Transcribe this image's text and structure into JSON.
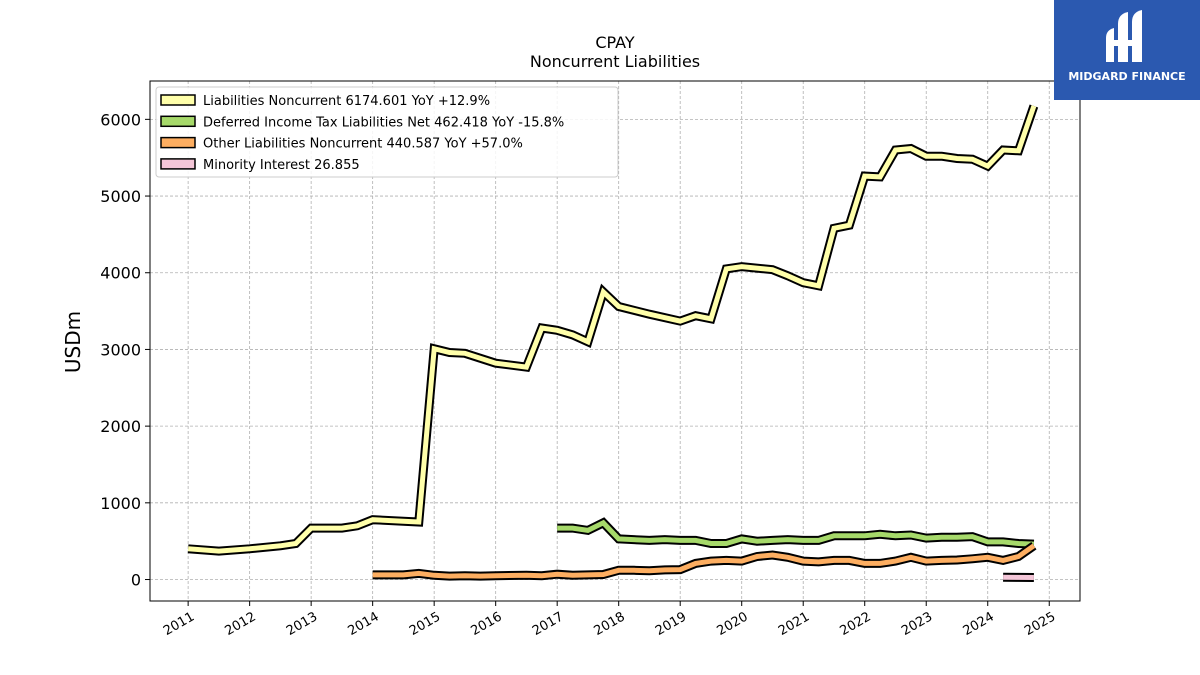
{
  "logo": {
    "name": "MIDGARD FINANCE",
    "color": "#2b59b0"
  },
  "chart_data": {
    "type": "line",
    "title": "CPAY",
    "subtitle": "Noncurrent  Liabilities",
    "ylabel": "USDm",
    "xlabel": "",
    "ylim": [
      -280,
      6500
    ],
    "xlim": [
      2010.38,
      2025.5
    ],
    "yticks": [
      0,
      1000,
      2000,
      3000,
      4000,
      5000,
      6000
    ],
    "xticks": [
      "2011",
      "2012",
      "2013",
      "2014",
      "2015",
      "2016",
      "2017",
      "2018",
      "2019",
      "2020",
      "2021",
      "2022",
      "2023",
      "2024",
      "2025"
    ],
    "grid": true,
    "legend_position": "top-left",
    "series": [
      {
        "name": "Liabilities Noncurrent  6174.601 YoY +12.9%",
        "color": "#ffffaa",
        "x": [
          2011.0,
          2011.5,
          2012.0,
          2012.5,
          2012.75,
          2013.0,
          2013.5,
          2013.75,
          2014.0,
          2014.5,
          2014.75,
          2015.0,
          2015.25,
          2015.5,
          2016.0,
          2016.5,
          2016.75,
          2017.0,
          2017.25,
          2017.5,
          2017.75,
          2018.0,
          2018.5,
          2019.0,
          2019.25,
          2019.5,
          2019.75,
          2020.0,
          2020.5,
          2020.75,
          2021.0,
          2021.25,
          2021.5,
          2021.75,
          2022.0,
          2022.25,
          2022.5,
          2022.75,
          2023.0,
          2023.25,
          2023.5,
          2023.75,
          2024.0,
          2024.25,
          2024.5,
          2024.75
        ],
        "values": [
          400,
          370,
          400,
          440,
          470,
          670,
          670,
          700,
          780,
          760,
          750,
          3010,
          2960,
          2950,
          2820,
          2770,
          3280,
          3250,
          3190,
          3100,
          3750,
          3560,
          3460,
          3370,
          3440,
          3400,
          4050,
          4080,
          4040,
          3960,
          3870,
          3830,
          4580,
          4620,
          5260,
          5250,
          5600,
          5620,
          5520,
          5520,
          5490,
          5480,
          5390,
          5600,
          5590,
          6174.601
        ]
      },
      {
        "name": "Deferred Income Tax Liabilities Net  462.418 YoY -15.8%",
        "color": "#a6d96a",
        "x": [
          2017.0,
          2017.25,
          2017.5,
          2017.75,
          2018.0,
          2018.5,
          2018.75,
          2019.0,
          2019.25,
          2019.5,
          2019.75,
          2020.0,
          2020.25,
          2020.5,
          2020.75,
          2021.0,
          2021.25,
          2021.5,
          2021.75,
          2022.0,
          2022.25,
          2022.5,
          2022.75,
          2023.0,
          2023.25,
          2023.5,
          2023.75,
          2024.0,
          2024.25,
          2024.5,
          2024.75
        ],
        "values": [
          670,
          670,
          640,
          740,
          530,
          510,
          520,
          510,
          510,
          470,
          470,
          530,
          500,
          510,
          520,
          510,
          510,
          570,
          570,
          570,
          590,
          570,
          580,
          540,
          550,
          550,
          560,
          490,
          490,
          470,
          462.418
        ]
      },
      {
        "name": "Other Liabilities Noncurrent  440.587 YoY +57.0%",
        "color": "#fdae61",
        "x": [
          2014.0,
          2014.5,
          2014.75,
          2015.0,
          2015.25,
          2015.5,
          2015.75,
          2016.0,
          2016.5,
          2016.75,
          2017.0,
          2017.25,
          2017.5,
          2017.75,
          2018.0,
          2018.25,
          2018.5,
          2018.75,
          2019.0,
          2019.25,
          2019.5,
          2019.75,
          2020.0,
          2020.25,
          2020.5,
          2020.75,
          2021.0,
          2021.25,
          2021.5,
          2021.75,
          2022.0,
          2022.25,
          2022.5,
          2022.75,
          2023.0,
          2023.25,
          2023.5,
          2023.75,
          2024.0,
          2024.25,
          2024.5,
          2024.75
        ],
        "values": [
          60,
          60,
          80,
          55,
          45,
          50,
          45,
          50,
          55,
          50,
          70,
          55,
          60,
          65,
          120,
          120,
          115,
          125,
          130,
          210,
          240,
          250,
          240,
          300,
          320,
          290,
          240,
          230,
          250,
          250,
          210,
          210,
          240,
          290,
          240,
          250,
          255,
          270,
          290,
          250,
          300,
          440.587
        ]
      },
      {
        "name": "Minority Interest  26.855",
        "color": "#f4c6d8",
        "x": [
          2024.25,
          2024.5,
          2024.75
        ],
        "values": [
          30,
          28,
          26.855
        ]
      }
    ]
  }
}
